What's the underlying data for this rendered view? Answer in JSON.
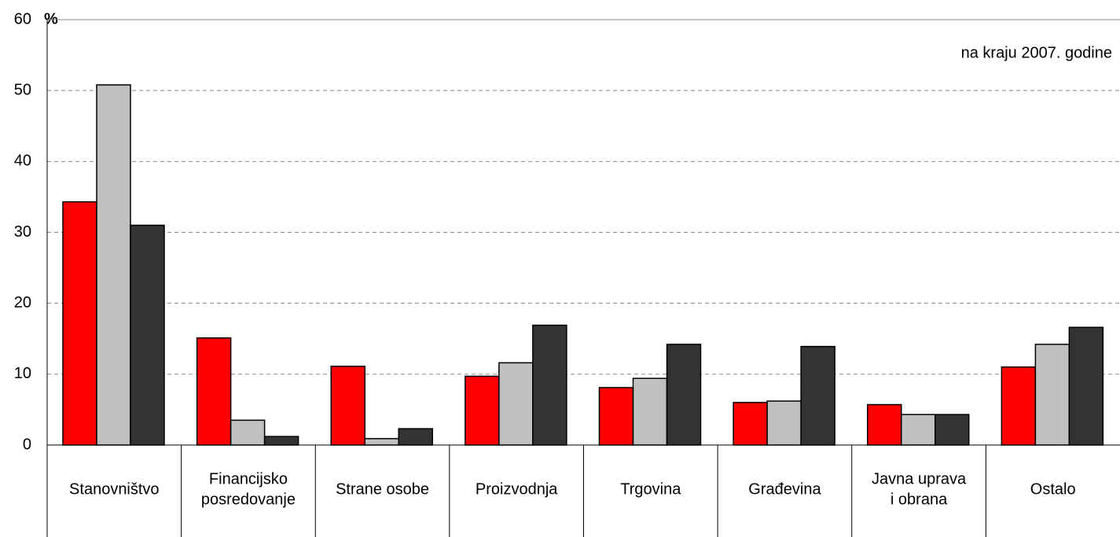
{
  "chart_data": {
    "type": "bar",
    "annotation": "na kraju 2007. godine",
    "y_unit": "%",
    "categories": [
      [
        "Stanovništvo"
      ],
      [
        "Financijsko",
        "posredovanje"
      ],
      [
        "Strane osobe"
      ],
      [
        "Proizvodnja"
      ],
      [
        "Trgovina"
      ],
      [
        "Građevina"
      ],
      [
        "Javna uprava",
        "i obrana"
      ],
      [
        "Ostalo"
      ]
    ],
    "series": [
      {
        "color": "#ff0000",
        "values": [
          34.3,
          15.1,
          11.1,
          9.7,
          8.1,
          6.0,
          5.7,
          11.0
        ]
      },
      {
        "color": "#c0c0c0",
        "values": [
          50.8,
          3.5,
          0.9,
          11.6,
          9.4,
          6.2,
          4.3,
          14.2
        ]
      },
      {
        "color": "#333333",
        "values": [
          31.0,
          1.2,
          2.3,
          16.9,
          14.2,
          13.9,
          4.3,
          16.6
        ]
      }
    ],
    "ylim": [
      0,
      60
    ],
    "yticks": [
      0,
      10,
      20,
      30,
      40,
      50,
      60
    ],
    "grid": true
  }
}
